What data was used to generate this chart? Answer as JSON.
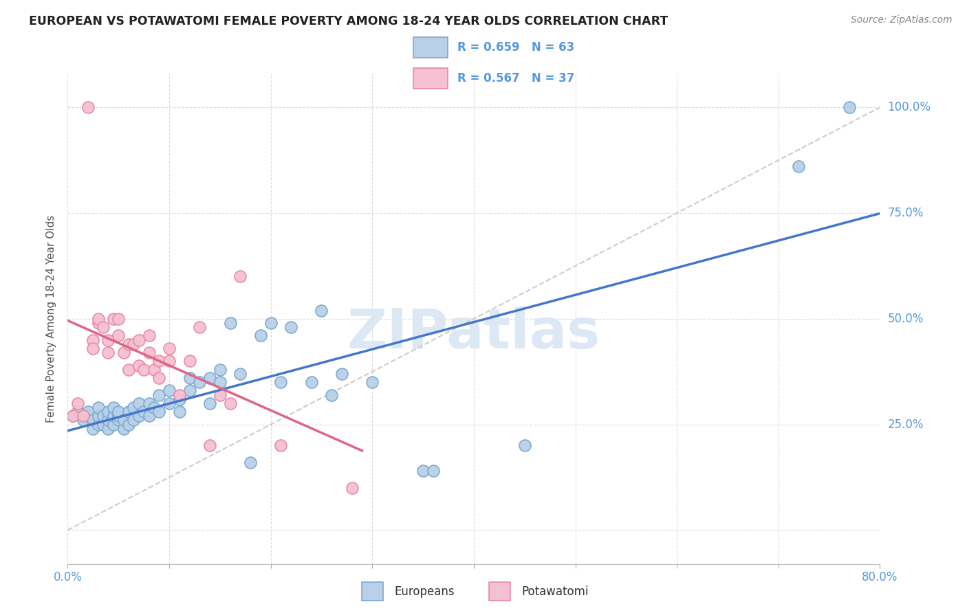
{
  "title": "EUROPEAN VS POTAWATOMI FEMALE POVERTY AMONG 18-24 YEAR OLDS CORRELATION CHART",
  "source": "Source: ZipAtlas.com",
  "ylabel": "Female Poverty Among 18-24 Year Olds",
  "xlim": [
    0.0,
    0.8
  ],
  "ylim": [
    -0.08,
    1.08
  ],
  "yticks": [
    0.0,
    0.25,
    0.5,
    0.75,
    1.0
  ],
  "ytick_labels": [
    "",
    "25.0%",
    "50.0%",
    "75.0%",
    "100.0%"
  ],
  "xticks": [
    0.0,
    0.1,
    0.2,
    0.3,
    0.4,
    0.5,
    0.6,
    0.7,
    0.8
  ],
  "legend_blue_r": "R = 0.659",
  "legend_blue_n": "N = 63",
  "legend_pink_r": "R = 0.567",
  "legend_pink_n": "N = 37",
  "blue_color": "#b8d0e8",
  "blue_edge": "#7aaad0",
  "pink_color": "#f5c0d0",
  "pink_edge": "#e888a8",
  "blue_line_color": "#4477cc",
  "pink_line_color": "#dd6688",
  "diag_line_color": "#cccccc",
  "watermark_color": "#dde8f5",
  "grid_color": "#dddddd",
  "tick_label_color": "#5599dd",
  "title_color": "#222222",
  "source_color": "#888888",
  "ylabel_color": "#555555",
  "legend_border_color": "#cccccc",
  "bottom_legend_border": "#dddddd",
  "europeans_x": [
    0.005,
    0.01,
    0.015,
    0.02,
    0.02,
    0.025,
    0.025,
    0.03,
    0.03,
    0.03,
    0.035,
    0.035,
    0.04,
    0.04,
    0.04,
    0.045,
    0.045,
    0.045,
    0.05,
    0.05,
    0.05,
    0.055,
    0.055,
    0.06,
    0.06,
    0.065,
    0.065,
    0.07,
    0.07,
    0.075,
    0.08,
    0.08,
    0.085,
    0.09,
    0.09,
    0.1,
    0.1,
    0.11,
    0.11,
    0.12,
    0.12,
    0.13,
    0.14,
    0.14,
    0.15,
    0.15,
    0.16,
    0.17,
    0.18,
    0.19,
    0.2,
    0.21,
    0.22,
    0.24,
    0.25,
    0.26,
    0.27,
    0.3,
    0.35,
    0.36,
    0.45,
    0.72,
    0.77
  ],
  "europeans_y": [
    0.27,
    0.28,
    0.26,
    0.27,
    0.28,
    0.24,
    0.26,
    0.25,
    0.27,
    0.29,
    0.25,
    0.27,
    0.24,
    0.26,
    0.28,
    0.25,
    0.27,
    0.29,
    0.26,
    0.27,
    0.28,
    0.24,
    0.26,
    0.25,
    0.28,
    0.26,
    0.29,
    0.27,
    0.3,
    0.28,
    0.27,
    0.3,
    0.29,
    0.28,
    0.32,
    0.3,
    0.33,
    0.31,
    0.28,
    0.33,
    0.36,
    0.35,
    0.3,
    0.36,
    0.35,
    0.38,
    0.49,
    0.37,
    0.16,
    0.46,
    0.49,
    0.35,
    0.48,
    0.35,
    0.52,
    0.32,
    0.37,
    0.35,
    0.14,
    0.14,
    0.2,
    0.86,
    1.0
  ],
  "potawatomi_x": [
    0.005,
    0.01,
    0.015,
    0.02,
    0.025,
    0.025,
    0.03,
    0.03,
    0.035,
    0.04,
    0.04,
    0.045,
    0.05,
    0.05,
    0.055,
    0.06,
    0.06,
    0.065,
    0.07,
    0.07,
    0.075,
    0.08,
    0.08,
    0.085,
    0.09,
    0.09,
    0.1,
    0.1,
    0.11,
    0.12,
    0.13,
    0.14,
    0.15,
    0.16,
    0.17,
    0.21,
    0.28
  ],
  "potawatomi_y": [
    0.27,
    0.3,
    0.27,
    1.0,
    0.45,
    0.43,
    0.49,
    0.5,
    0.48,
    0.45,
    0.42,
    0.5,
    0.46,
    0.5,
    0.42,
    0.44,
    0.38,
    0.44,
    0.45,
    0.39,
    0.38,
    0.46,
    0.42,
    0.38,
    0.4,
    0.36,
    0.4,
    0.43,
    0.32,
    0.4,
    0.48,
    0.2,
    0.32,
    0.3,
    0.6,
    0.2,
    0.1
  ]
}
